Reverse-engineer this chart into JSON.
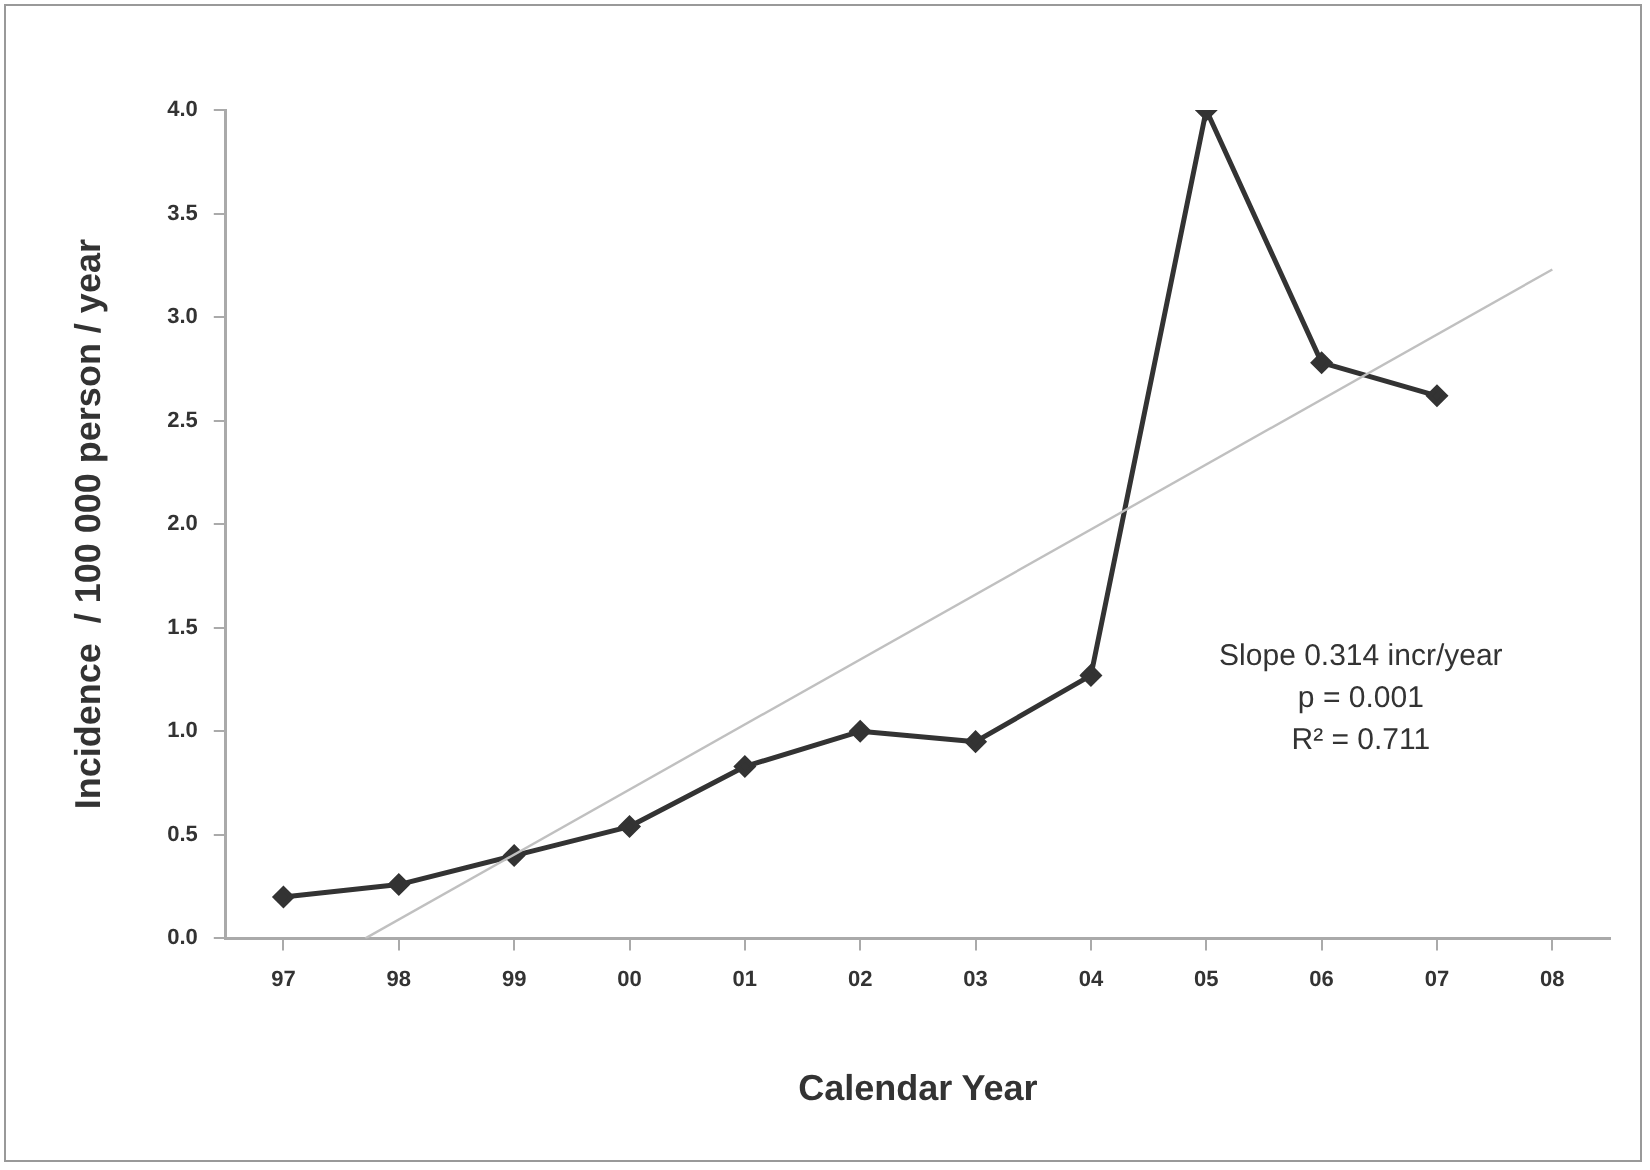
{
  "chart_data": {
    "type": "line",
    "xlabel": "Calendar Year",
    "ylabel": "Incidence  / 100 000 person / year",
    "x": [
      1997,
      1998,
      1999,
      2000,
      2001,
      2002,
      2003,
      2004,
      2005,
      2006,
      2007
    ],
    "series": [
      {
        "color": "#333333",
        "values": [
          0.2,
          0.26,
          0.4,
          0.54,
          0.83,
          1.0,
          0.95,
          1.27,
          4.0,
          2.78,
          2.62
        ],
        "marker": "diamond"
      },
      {
        "type": "line",
        "color": "#c0c0c0",
        "x": [
          1997.71,
          2008
        ],
        "values": [
          0,
          3.23
        ],
        "marker": "none"
      }
    ],
    "xlim": [
      1996.5,
      2008.5
    ],
    "xticks": [
      {
        "value": 1997,
        "label": "97"
      },
      {
        "value": 1998,
        "label": "98"
      },
      {
        "value": 1999,
        "label": "99"
      },
      {
        "value": 2000,
        "label": "00"
      },
      {
        "value": 2001,
        "label": "01"
      },
      {
        "value": 2002,
        "label": "02"
      },
      {
        "value": 2003,
        "label": "03"
      },
      {
        "value": 2004,
        "label": "04"
      },
      {
        "value": 2005,
        "label": "05"
      },
      {
        "value": 2006,
        "label": "06"
      },
      {
        "value": 2007,
        "label": "07"
      },
      {
        "value": 2008,
        "label": "08"
      }
    ],
    "ylim": [
      0,
      4
    ],
    "yticks": [
      {
        "value": 0,
        "label": "0.0"
      },
      0.5,
      {
        "value": 1,
        "label": "1.0"
      },
      1.5,
      {
        "value": 2,
        "label": "2.0"
      },
      2.5,
      {
        "value": 3,
        "label": "3.0"
      },
      3.5,
      {
        "value": 4,
        "label": "4.0"
      }
    ],
    "annotations": [
      "Slope 0.314 incr/year",
      "p = 0.001",
      "R² = 0.711"
    ],
    "legend": false,
    "grid": false
  }
}
